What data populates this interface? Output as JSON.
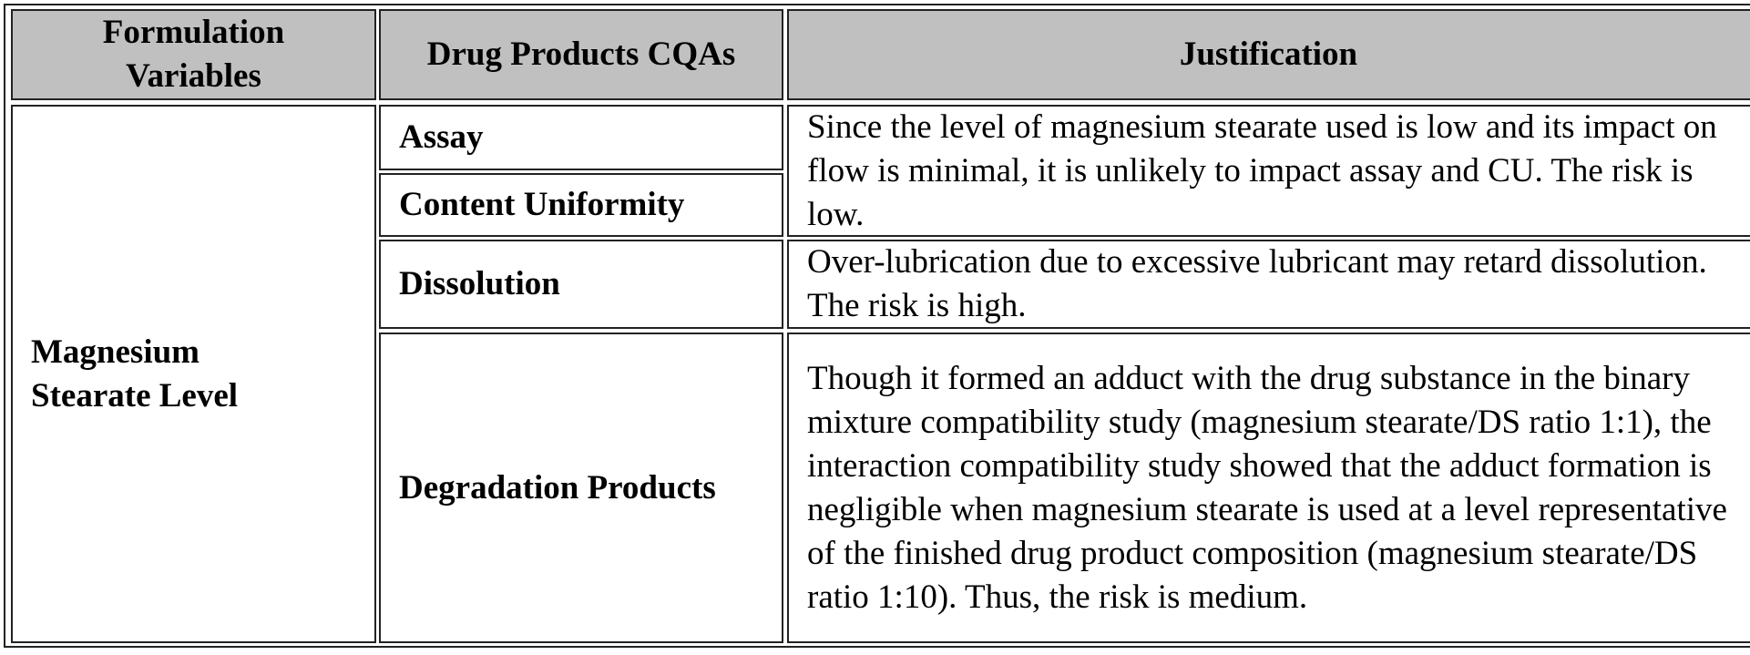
{
  "table": {
    "header": [
      "Formulation Variables",
      "Drug Products CQAs",
      "Justification"
    ],
    "variable": "Magnesium Stearate Level",
    "cqas": [
      "Assay",
      "Content Uniformity",
      "Dissolution",
      "Degradation Products"
    ],
    "justifications": [
      "Since the level of magnesium stearate used is low and its impact on flow is minimal, it is unlikely to impact assay and CU. The risk is low.",
      "Over-lubrication due to excessive lubricant may retard dissolution. The risk is high.",
      "Though it formed an adduct with the drug substance in the binary mixture compatibility study (magnesium stearate/DS ratio 1:1), the interaction compatibility study showed that the adduct formation is negligible when magnesium stearate is used at a level representative of the finished drug product composition (magnesium stearate/DS ratio 1:10). Thus, the risk is medium."
    ]
  }
}
